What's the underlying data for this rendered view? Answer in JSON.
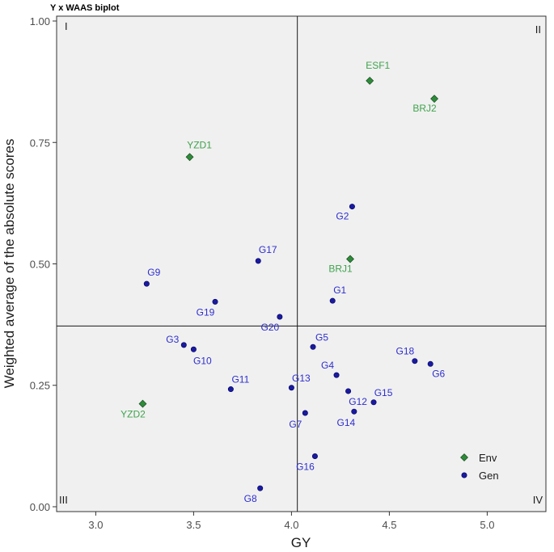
{
  "chart_data": {
    "type": "scatter",
    "title": "Y x WAAS biplot",
    "xlabel": "GY",
    "ylabel": "Weighted average of the absolute scores",
    "xlim": [
      2.8,
      5.3
    ],
    "ylim": [
      -0.01,
      1.01
    ],
    "x_ticks": [
      "3.0",
      "3.5",
      "4.0",
      "4.5",
      "5.0"
    ],
    "y_ticks": [
      "0.00",
      "0.25",
      "0.50",
      "0.75",
      "1.00"
    ],
    "x_tick_values": [
      3.0,
      3.5,
      4.0,
      4.5,
      5.0
    ],
    "y_tick_values": [
      0.0,
      0.25,
      0.5,
      0.75,
      1.0
    ],
    "x_ref": 4.03,
    "y_ref": 0.372,
    "quadrants": [
      "I",
      "II",
      "III",
      "IV"
    ],
    "grid": false,
    "legend_position": "bottom-right",
    "colors": {
      "env": "#2e8b3a",
      "env_label": "#3fa34d",
      "gen": "#1a1aa0",
      "gen_label": "#2e2ecf",
      "panel": "#f0f0f0"
    },
    "series": [
      {
        "name": "Env",
        "marker": "diamond",
        "points": [
          {
            "label": "ESF1",
            "x": 4.4,
            "y": 0.877
          },
          {
            "label": "BRJ2",
            "x": 4.73,
            "y": 0.84
          },
          {
            "label": "YZD1",
            "x": 3.48,
            "y": 0.72
          },
          {
            "label": "BRJ1",
            "x": 4.3,
            "y": 0.51
          },
          {
            "label": "YZD2",
            "x": 3.24,
            "y": 0.212
          }
        ]
      },
      {
        "name": "Gen",
        "marker": "circle",
        "points": [
          {
            "label": "G2",
            "x": 4.31,
            "y": 0.618
          },
          {
            "label": "G17",
            "x": 3.83,
            "y": 0.506
          },
          {
            "label": "G9",
            "x": 3.26,
            "y": 0.459
          },
          {
            "label": "G1",
            "x": 4.21,
            "y": 0.424
          },
          {
            "label": "G19",
            "x": 3.61,
            "y": 0.422
          },
          {
            "label": "G20",
            "x": 3.94,
            "y": 0.391
          },
          {
            "label": "G3",
            "x": 3.45,
            "y": 0.333
          },
          {
            "label": "G5",
            "x": 4.11,
            "y": 0.329
          },
          {
            "label": "G10",
            "x": 3.5,
            "y": 0.324
          },
          {
            "label": "G18",
            "x": 4.63,
            "y": 0.3
          },
          {
            "label": "G6",
            "x": 4.71,
            "y": 0.294
          },
          {
            "label": "G4",
            "x": 4.23,
            "y": 0.271
          },
          {
            "label": "G13",
            "x": 4.0,
            "y": 0.245
          },
          {
            "label": "G11",
            "x": 3.69,
            "y": 0.242
          },
          {
            "label": "G12",
            "x": 4.29,
            "y": 0.238
          },
          {
            "label": "G15",
            "x": 4.42,
            "y": 0.215
          },
          {
            "label": "G14",
            "x": 4.32,
            "y": 0.196
          },
          {
            "label": "G7",
            "x": 4.07,
            "y": 0.193
          },
          {
            "label": "G16",
            "x": 4.12,
            "y": 0.104
          },
          {
            "label": "G8",
            "x": 3.84,
            "y": 0.038
          }
        ]
      }
    ]
  }
}
